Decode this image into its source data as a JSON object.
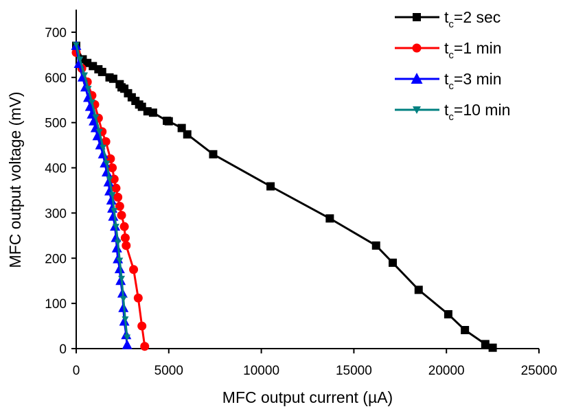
{
  "chart_data": {
    "type": "line",
    "xlabel": "MFC output current (µA)",
    "ylabel": "MFC output voltage (mV)",
    "xlim": [
      0,
      25000
    ],
    "ylim": [
      0,
      750
    ],
    "xticks": [
      "0",
      "5000",
      "10000",
      "15000",
      "20000",
      "25000"
    ],
    "yticks": [
      "0",
      "100",
      "200",
      "300",
      "400",
      "500",
      "600",
      "700"
    ],
    "grid": false,
    "legend_position": "top-right",
    "series": [
      {
        "name": "t_c=2 sec",
        "legend_base": "t",
        "legend_sub": "c",
        "legend_rest": "=2 sec",
        "color": "#000000",
        "marker": "square",
        "points": [
          [
            0,
            670
          ],
          [
            350,
            640
          ],
          [
            600,
            632
          ],
          [
            900,
            625
          ],
          [
            1200,
            618
          ],
          [
            1400,
            612
          ],
          [
            1800,
            600
          ],
          [
            2000,
            597
          ],
          [
            2350,
            585
          ],
          [
            2450,
            578
          ],
          [
            2600,
            575
          ],
          [
            2800,
            565
          ],
          [
            3000,
            556
          ],
          [
            3200,
            548
          ],
          [
            3400,
            540
          ],
          [
            3550,
            535
          ],
          [
            3850,
            525
          ],
          [
            4150,
            522
          ],
          [
            4900,
            504
          ],
          [
            5000,
            503
          ],
          [
            5700,
            488
          ],
          [
            6000,
            474
          ],
          [
            7400,
            430
          ],
          [
            10500,
            359
          ],
          [
            13700,
            288
          ],
          [
            16200,
            228
          ],
          [
            17100,
            190
          ],
          [
            18500,
            130
          ],
          [
            20100,
            76
          ],
          [
            21000,
            41
          ],
          [
            22100,
            10
          ],
          [
            22500,
            2
          ]
        ]
      },
      {
        "name": "t_c=1 min",
        "legend_base": "t",
        "legend_sub": "c",
        "legend_rest": "=1 min",
        "color": "#ff0000",
        "marker": "circle",
        "points": [
          [
            0,
            655
          ],
          [
            300,
            620
          ],
          [
            600,
            590
          ],
          [
            850,
            560
          ],
          [
            1000,
            540
          ],
          [
            1200,
            510
          ],
          [
            1400,
            480
          ],
          [
            1600,
            458
          ],
          [
            1850,
            420
          ],
          [
            1950,
            400
          ],
          [
            2050,
            375
          ],
          [
            2150,
            355
          ],
          [
            2250,
            335
          ],
          [
            2350,
            315
          ],
          [
            2450,
            295
          ],
          [
            2600,
            270
          ],
          [
            2650,
            245
          ],
          [
            2700,
            228
          ],
          [
            3100,
            175
          ],
          [
            3350,
            112
          ],
          [
            3550,
            50
          ],
          [
            3700,
            5
          ]
        ]
      },
      {
        "name": "t_c=3 min",
        "legend_base": "t",
        "legend_sub": "c",
        "legend_rest": "=3 min",
        "color": "#0000ff",
        "marker": "triangle-up",
        "points": [
          [
            0,
            670
          ],
          [
            150,
            630
          ],
          [
            350,
            600
          ],
          [
            500,
            578
          ],
          [
            650,
            555
          ],
          [
            750,
            535
          ],
          [
            850,
            518
          ],
          [
            950,
            503
          ],
          [
            1050,
            488
          ],
          [
            1150,
            470
          ],
          [
            1300,
            450
          ],
          [
            1450,
            430
          ],
          [
            1550,
            410
          ],
          [
            1650,
            390
          ],
          [
            1750,
            368
          ],
          [
            1800,
            348
          ],
          [
            1900,
            328
          ],
          [
            1950,
            310
          ],
          [
            2000,
            292
          ],
          [
            2100,
            270
          ],
          [
            2150,
            245
          ],
          [
            2200,
            222
          ],
          [
            2250,
            198
          ],
          [
            2350,
            176
          ],
          [
            2400,
            150
          ],
          [
            2500,
            122
          ],
          [
            2550,
            90
          ],
          [
            2600,
            60
          ],
          [
            2700,
            30
          ],
          [
            2750,
            8
          ]
        ]
      },
      {
        "name": "t_c=10 min",
        "legend_base": "t",
        "legend_sub": "c",
        "legend_rest": "=10 min",
        "color": "#008080",
        "marker": "triangle-down",
        "points": [
          [
            0,
            672
          ],
          [
            200,
            640
          ],
          [
            450,
            605
          ],
          [
            650,
            575
          ],
          [
            850,
            545
          ],
          [
            1050,
            512
          ],
          [
            1250,
            480
          ],
          [
            1450,
            445
          ],
          [
            1650,
            410
          ],
          [
            1800,
            375
          ],
          [
            1950,
            340
          ],
          [
            2050,
            305
          ],
          [
            2150,
            270
          ],
          [
            2250,
            235
          ],
          [
            2350,
            195
          ],
          [
            2450,
            155
          ],
          [
            2550,
            110
          ],
          [
            2650,
            65
          ],
          [
            2750,
            25
          ]
        ]
      }
    ]
  }
}
